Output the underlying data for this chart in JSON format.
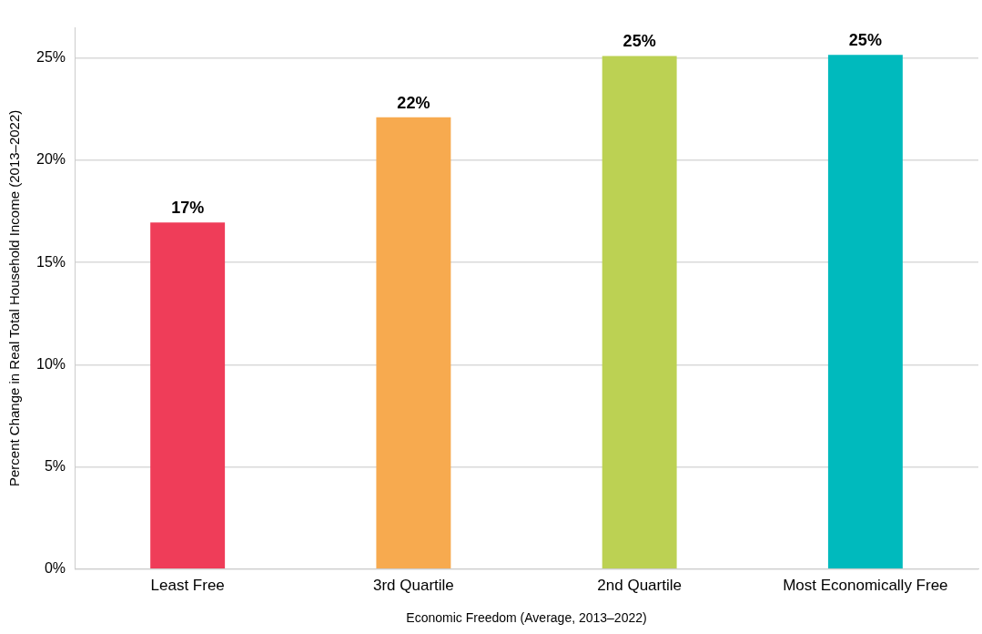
{
  "chart_data": {
    "type": "bar",
    "xlabel": "Economic Freedom (Average, 2013–2022)",
    "ylabel": "Percent Change in Real Total Household Income (2013–2022)",
    "categories": [
      "Least Free",
      "3rd Quartile",
      "2nd Quartile",
      "Most Economically Free"
    ],
    "values": [
      16.95,
      22.1,
      25.1,
      25.15
    ],
    "colors": [
      "#ef3d59",
      "#f7aa4f",
      "#bcd153",
      "#00babd"
    ],
    "value_labels": [
      "17%",
      "22%",
      "25%",
      "25%"
    ],
    "ylim": [
      0,
      26.5
    ],
    "yticks": [
      {
        "value": 0,
        "label": "0%"
      },
      {
        "value": 5,
        "label": "5%"
      },
      {
        "value": 10,
        "label": "10%"
      },
      {
        "value": 15,
        "label": "15%"
      },
      {
        "value": 20,
        "label": "20%"
      },
      {
        "value": 25,
        "label": "25%"
      }
    ],
    "grid": "y"
  }
}
